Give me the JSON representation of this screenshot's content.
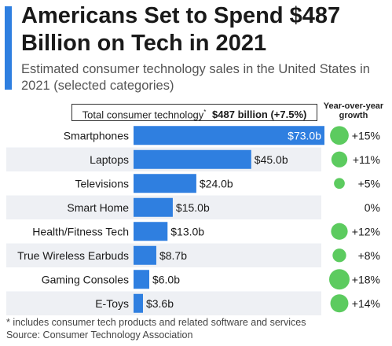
{
  "colors": {
    "accent": "#2f7fe0",
    "bar": "#2f7fe0",
    "growth": "#5ccb5f",
    "stripe": "#eef0f4"
  },
  "header": {
    "title": "Americans Set to Spend $487 Billion on Tech in 2021",
    "subtitle": "Estimated consumer technology sales in the United States in 2021 (selected categories)"
  },
  "total": {
    "label": "Total consumer technology",
    "marker": "*",
    "value": "$487 billion (+7.5%)"
  },
  "growth_header": "Year-over-year growth",
  "footer": {
    "note": "* includes consumer tech products and related software and services",
    "source": "Source: Consumer Technology Association"
  },
  "chart_data": {
    "type": "bar",
    "orientation": "horizontal",
    "categories": [
      "Smartphones",
      "Laptops",
      "Televisions",
      "Smart Home",
      "Health/Fitness Tech",
      "True Wireless Earbuds",
      "Gaming Consoles",
      "E-Toys"
    ],
    "series": [
      {
        "values": [
          73.0,
          45.0,
          24.0,
          15.0,
          13.0,
          8.7,
          6.0,
          3.6
        ]
      }
    ],
    "value_labels": [
      "$73.0b",
      "$45.0b",
      "$24.0b",
      "$15.0b",
      "$13.0b",
      "$8.7b",
      "$6.0b",
      "$3.6b"
    ],
    "growth_pct": [
      15,
      11,
      5,
      0,
      12,
      8,
      18,
      14
    ],
    "growth_labels": [
      "+15%",
      "+11%",
      "+5%",
      "0%",
      "+12%",
      "+8%",
      "+18%",
      "+14%"
    ],
    "xlim": [
      0,
      73
    ],
    "grid": false,
    "legend": "none"
  }
}
